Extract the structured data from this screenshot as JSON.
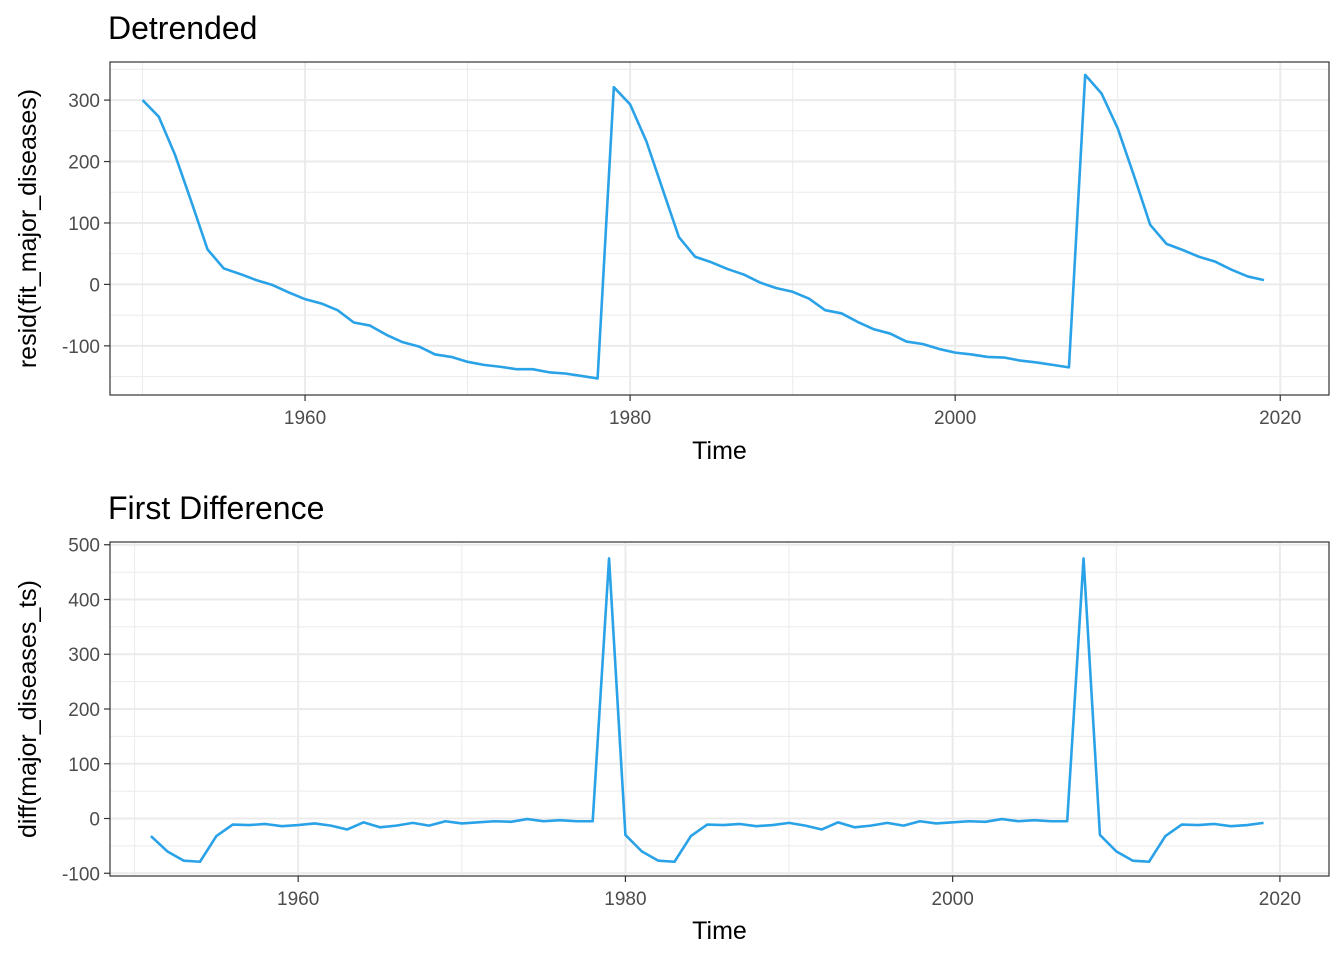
{
  "chart_data": [
    {
      "type": "line",
      "title": "Detrended",
      "xlabel": "Time",
      "ylabel": "resid(fit_major_diseases)",
      "xlim": [
        1948.0,
        2023.0
      ],
      "ylim": [
        -180,
        362
      ],
      "x_ticks": [
        1960,
        1980,
        2000,
        2020
      ],
      "y_ticks": [
        -100,
        0,
        100,
        200,
        300
      ],
      "x_tick_labels": [
        "1960",
        "1980",
        "2000",
        "2020"
      ],
      "y_tick_labels": [
        "-100",
        "0",
        "100",
        "200",
        "300"
      ],
      "grid": true,
      "color": "#2aa2e8",
      "x": [
        1950,
        1951,
        1952,
        1953,
        1954,
        1955,
        1956,
        1957,
        1958,
        1959,
        1960,
        1961,
        1962,
        1963,
        1964,
        1965,
        1966,
        1967,
        1968,
        1969,
        1970,
        1971,
        1972,
        1973,
        1974,
        1975,
        1976,
        1977,
        1978,
        1979,
        1980,
        1981,
        1982,
        1983,
        1984,
        1985,
        1986,
        1987,
        1988,
        1989,
        1990,
        1991,
        1992,
        1993,
        1994,
        1995,
        1996,
        1997,
        1998,
        1999,
        2000,
        2001,
        2002,
        2003,
        2004,
        2005,
        2006,
        2007,
        2008,
        2009,
        2010,
        2011,
        2012,
        2013,
        2014,
        2015,
        2016,
        2017,
        2018,
        2019
      ],
      "y": [
        300,
        273,
        211,
        135,
        57,
        26,
        17,
        7,
        -1,
        -13,
        -24,
        -31,
        -42,
        -62,
        -67,
        -82,
        -94,
        -101,
        -114,
        -118,
        -126,
        -131,
        -134,
        -138,
        -138,
        -143,
        -145,
        -149,
        -153,
        321,
        293,
        233,
        155,
        77,
        45,
        36,
        25,
        16,
        3,
        -6,
        -12,
        -23,
        -42,
        -47,
        -61,
        -73,
        -80,
        -93,
        -97,
        -105,
        -111,
        -114,
        -118,
        -119,
        -124,
        -127,
        -131,
        -135,
        341,
        311,
        254,
        177,
        97,
        66,
        56,
        45,
        37,
        24,
        13,
        7
      ]
    },
    {
      "type": "line",
      "title": "First Difference",
      "xlabel": "Time",
      "ylabel": "diff(major_diseases_ts)",
      "xlim": [
        1948.5,
        2023.0
      ],
      "ylim": [
        -105,
        505
      ],
      "x_ticks": [
        1960,
        1980,
        2000,
        2020
      ],
      "y_ticks": [
        -100,
        0,
        100,
        200,
        300,
        400,
        500
      ],
      "x_tick_labels": [
        "1960",
        "1980",
        "2000",
        "2020"
      ],
      "y_tick_labels": [
        "-100",
        "0",
        "100",
        "200",
        "300",
        "400",
        "500"
      ],
      "grid": true,
      "color": "#2aa2e8",
      "x": [
        1951,
        1952,
        1953,
        1954,
        1955,
        1956,
        1957,
        1958,
        1959,
        1960,
        1961,
        1962,
        1963,
        1964,
        1965,
        1966,
        1967,
        1968,
        1969,
        1970,
        1971,
        1972,
        1973,
        1974,
        1975,
        1976,
        1977,
        1978,
        1979,
        1980,
        1981,
        1982,
        1983,
        1984,
        1985,
        1986,
        1987,
        1988,
        1989,
        1990,
        1991,
        1992,
        1993,
        1994,
        1995,
        1996,
        1997,
        1998,
        1999,
        2000,
        2001,
        2002,
        2003,
        2004,
        2005,
        2006,
        2007,
        2008,
        2009,
        2010,
        2011,
        2012,
        2013,
        2014,
        2015,
        2016,
        2017,
        2018,
        2019
      ],
      "y": [
        -32,
        -60,
        -77,
        -79,
        -32,
        -11,
        -12,
        -10,
        -14,
        -12,
        -9,
        -13,
        -20,
        -7,
        -16,
        -13,
        -8,
        -13,
        -5,
        -9,
        -7,
        -5,
        -6,
        -1,
        -5,
        -3,
        -5,
        -5,
        475,
        -30,
        -60,
        -77,
        -79,
        -32,
        -11,
        -12,
        -10,
        -14,
        -12,
        -8,
        -13,
        -20,
        -7,
        -16,
        -13,
        -8,
        -13,
        -5,
        -9,
        -7,
        -5,
        -6,
        -1,
        -5,
        -3,
        -5,
        -5,
        475,
        -30,
        -60,
        -77,
        -79,
        -32,
        -11,
        -12,
        -10,
        -14,
        -12,
        -8
      ]
    }
  ]
}
